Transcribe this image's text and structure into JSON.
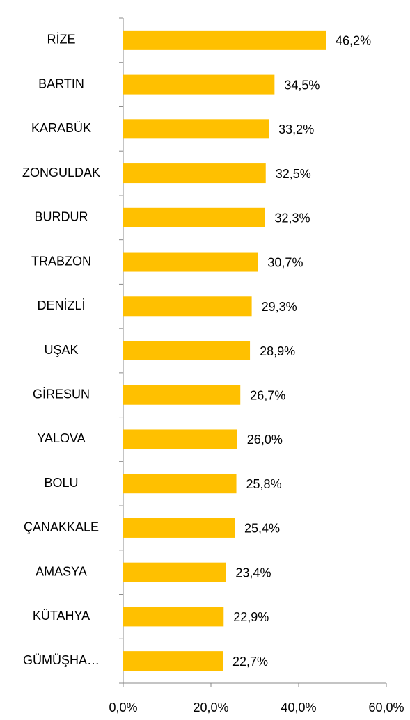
{
  "chart_data": {
    "type": "bar",
    "orientation": "horizontal",
    "categories": [
      "RİZE",
      "BARTIN",
      "KARABÜK",
      "ZONGULDAK",
      "BURDUR",
      "TRABZON",
      "DENİZLİ",
      "UŞAK",
      "GİRESUN",
      "YALOVA",
      "BOLU",
      "ÇANAKKALE",
      "AMASYA",
      "KÜTAHYA",
      "GÜMÜŞHA…"
    ],
    "values": [
      46.2,
      34.5,
      33.2,
      32.5,
      32.3,
      30.7,
      29.3,
      28.9,
      26.7,
      26.0,
      25.8,
      25.4,
      23.4,
      22.9,
      22.7
    ],
    "value_labels": [
      "46,2%",
      "34,5%",
      "33,2%",
      "32,5%",
      "32,3%",
      "30,7%",
      "29,3%",
      "28,9%",
      "26,7%",
      "26,0%",
      "25,8%",
      "25,4%",
      "23,4%",
      "22,9%",
      "22,7%"
    ],
    "color": "#FFC000",
    "xlim": [
      0,
      60
    ],
    "xticks": [
      {
        "value": 0,
        "label": "0,0%"
      },
      {
        "value": 20,
        "label": "20,0%"
      },
      {
        "value": 40,
        "label": "40,0%"
      },
      {
        "value": 60,
        "label": "60,0%"
      }
    ],
    "grid": false
  }
}
